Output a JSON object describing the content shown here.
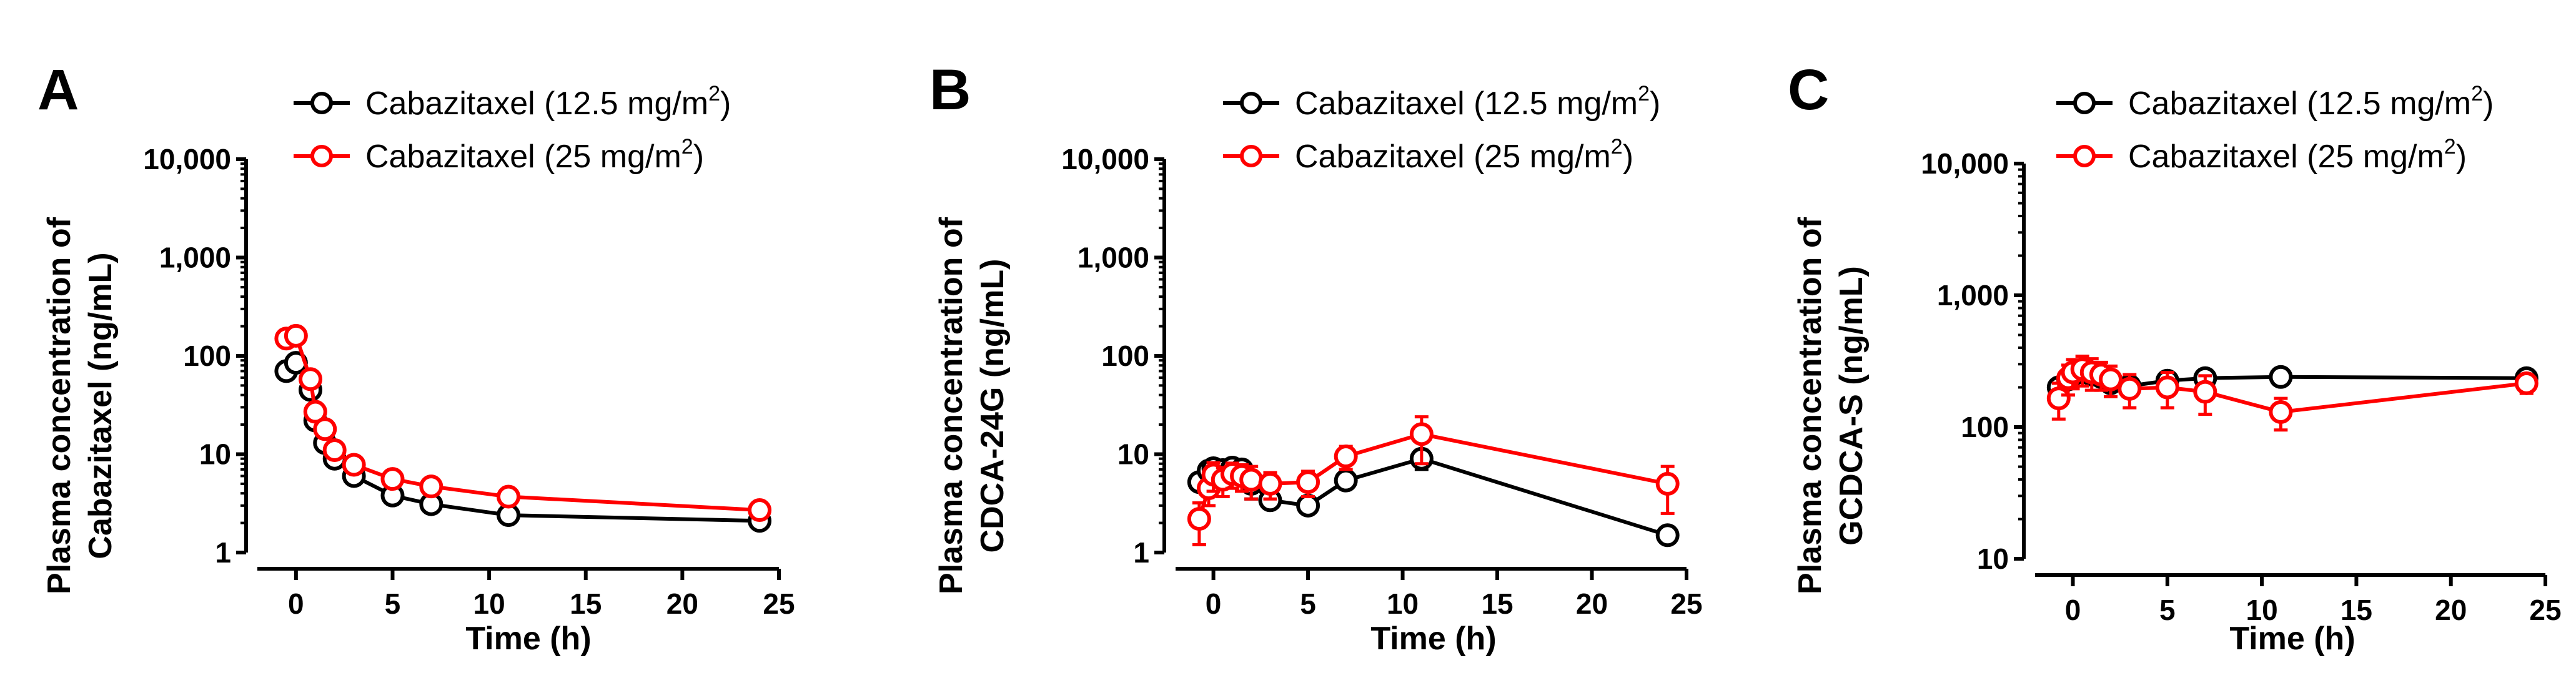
{
  "chart_data": [
    {
      "panel": "A",
      "type": "line",
      "yscale": "log",
      "ylabel_line1": "Plasma concentration of",
      "ylabel_line2": "Cabazitaxel (ng/mL)",
      "xlabel": "Time (h)",
      "xlim": [
        -2,
        25
      ],
      "ylim": [
        1,
        10000
      ],
      "xticks": [
        0,
        5,
        10,
        15,
        20,
        25
      ],
      "yticks": [
        1,
        10,
        100,
        1000,
        10000
      ],
      "ytick_labels": [
        "1",
        "10",
        "100",
        "1,000",
        "10,000"
      ],
      "series": [
        {
          "name": "Cabazitaxel (12.5 mg/m2)",
          "legend_text": "Cabazitaxel (12.5 mg/m",
          "legend_sup": "2",
          "legend_tail": ")",
          "color": "#000000",
          "x": [
            -0.5,
            0,
            0.75,
            1,
            1.5,
            2,
            3,
            5,
            7,
            11,
            24
          ],
          "y": [
            70,
            85,
            45,
            22,
            13,
            9,
            6,
            3.8,
            3.1,
            2.4,
            2.1
          ],
          "err": [
            0,
            0,
            0,
            0,
            0,
            0,
            0,
            0,
            0,
            0,
            0
          ]
        },
        {
          "name": "Cabazitaxel (25 mg/m2)",
          "legend_text": "Cabazitaxel (25 mg/m",
          "legend_sup": "2",
          "legend_tail": ")",
          "color": "#ff0000",
          "x": [
            -0.5,
            0,
            0.75,
            1,
            1.5,
            2,
            3,
            5,
            7,
            11,
            24
          ],
          "y": [
            150,
            160,
            58,
            27,
            18,
            11,
            7.8,
            5.6,
            4.7,
            3.7,
            2.7
          ],
          "err": [
            0,
            0,
            0,
            0,
            0,
            0,
            0,
            0,
            0,
            0,
            0
          ]
        }
      ]
    },
    {
      "panel": "B",
      "type": "line",
      "yscale": "log",
      "ylabel_line1": "Plasma concentration of",
      "ylabel_line2": "CDCA-24G (ng/mL)",
      "xlabel": "Time (h)",
      "xlim": [
        -2,
        25
      ],
      "ylim": [
        1,
        10000
      ],
      "xticks": [
        0,
        5,
        10,
        15,
        20,
        25
      ],
      "yticks": [
        1,
        10,
        100,
        1000,
        10000
      ],
      "ytick_labels": [
        "1",
        "10",
        "100",
        "1,000",
        "10,000"
      ],
      "series": [
        {
          "name": "Cabazitaxel (12.5 mg/m2)",
          "legend_text": "Cabazitaxel (12.5 mg/m",
          "legend_sup": "2",
          "legend_tail": ")",
          "color": "#000000",
          "x": [
            -0.75,
            -0.25,
            0,
            0.5,
            1,
            1.5,
            2,
            3,
            5,
            7,
            11,
            24
          ],
          "y": [
            5.2,
            6.8,
            7.2,
            6.9,
            7.3,
            7.0,
            5.0,
            3.4,
            3.0,
            5.4,
            9.0,
            1.5
          ],
          "err": [
            0.8,
            1.2,
            1.5,
            1.2,
            1.5,
            1.5,
            1.5,
            0.5,
            0.5,
            0.8,
            2.0,
            0.2
          ]
        },
        {
          "name": "Cabazitaxel (25 mg/m2)",
          "legend_text": "Cabazitaxel (25 mg/m",
          "legend_sup": "2",
          "legend_tail": ")",
          "color": "#ff0000",
          "x": [
            -0.75,
            -0.25,
            0,
            0.5,
            1,
            1.5,
            2,
            3,
            5,
            7,
            11,
            24
          ],
          "y": [
            2.2,
            4.5,
            6.2,
            5.5,
            6.3,
            6.0,
            5.5,
            5.0,
            5.2,
            9.5,
            16,
            5.0
          ],
          "err": [
            1.0,
            1.5,
            2.0,
            1.8,
            1.8,
            1.8,
            2.0,
            1.5,
            1.5,
            2.5,
            8.0,
            2.5
          ]
        }
      ]
    },
    {
      "panel": "C",
      "type": "line",
      "yscale": "log",
      "ylabel_line1": "Plasma concentration of",
      "ylabel_line2": "GCDCA-S (ng/mL)",
      "xlabel": "Time (h)",
      "xlim": [
        -2,
        25
      ],
      "ylim": [
        10,
        10000
      ],
      "xticks": [
        0,
        5,
        10,
        15,
        20,
        25
      ],
      "yticks": [
        10,
        100,
        1000,
        10000
      ],
      "ytick_labels": [
        "10",
        "100",
        "1,000",
        "10,000"
      ],
      "series": [
        {
          "name": "Cabazitaxel (12.5 mg/m2)",
          "legend_text": "Cabazitaxel (12.5 mg/m",
          "legend_sup": "2",
          "legend_tail": ")",
          "color": "#000000",
          "x": [
            -0.75,
            -0.25,
            0,
            0.5,
            1,
            1.5,
            2,
            3,
            5,
            7,
            11,
            24
          ],
          "y": [
            200,
            230,
            250,
            260,
            250,
            240,
            215,
            205,
            225,
            235,
            240,
            235
          ],
          "err": [
            20,
            25,
            25,
            30,
            30,
            30,
            25,
            25,
            20,
            20,
            20,
            20
          ]
        },
        {
          "name": "Cabazitaxel (25 mg/m2)",
          "legend_text": "Cabazitaxel (25 mg/m",
          "legend_sup": "2",
          "legend_tail": ")",
          "color": "#ff0000",
          "x": [
            -0.75,
            -0.25,
            0,
            0.5,
            1,
            1.5,
            2,
            3,
            5,
            7,
            11,
            24
          ],
          "y": [
            165,
            235,
            260,
            275,
            260,
            250,
            230,
            195,
            200,
            185,
            130,
            215
          ],
          "err": [
            50,
            60,
            65,
            70,
            70,
            60,
            60,
            55,
            60,
            60,
            35,
            35
          ]
        }
      ]
    }
  ]
}
